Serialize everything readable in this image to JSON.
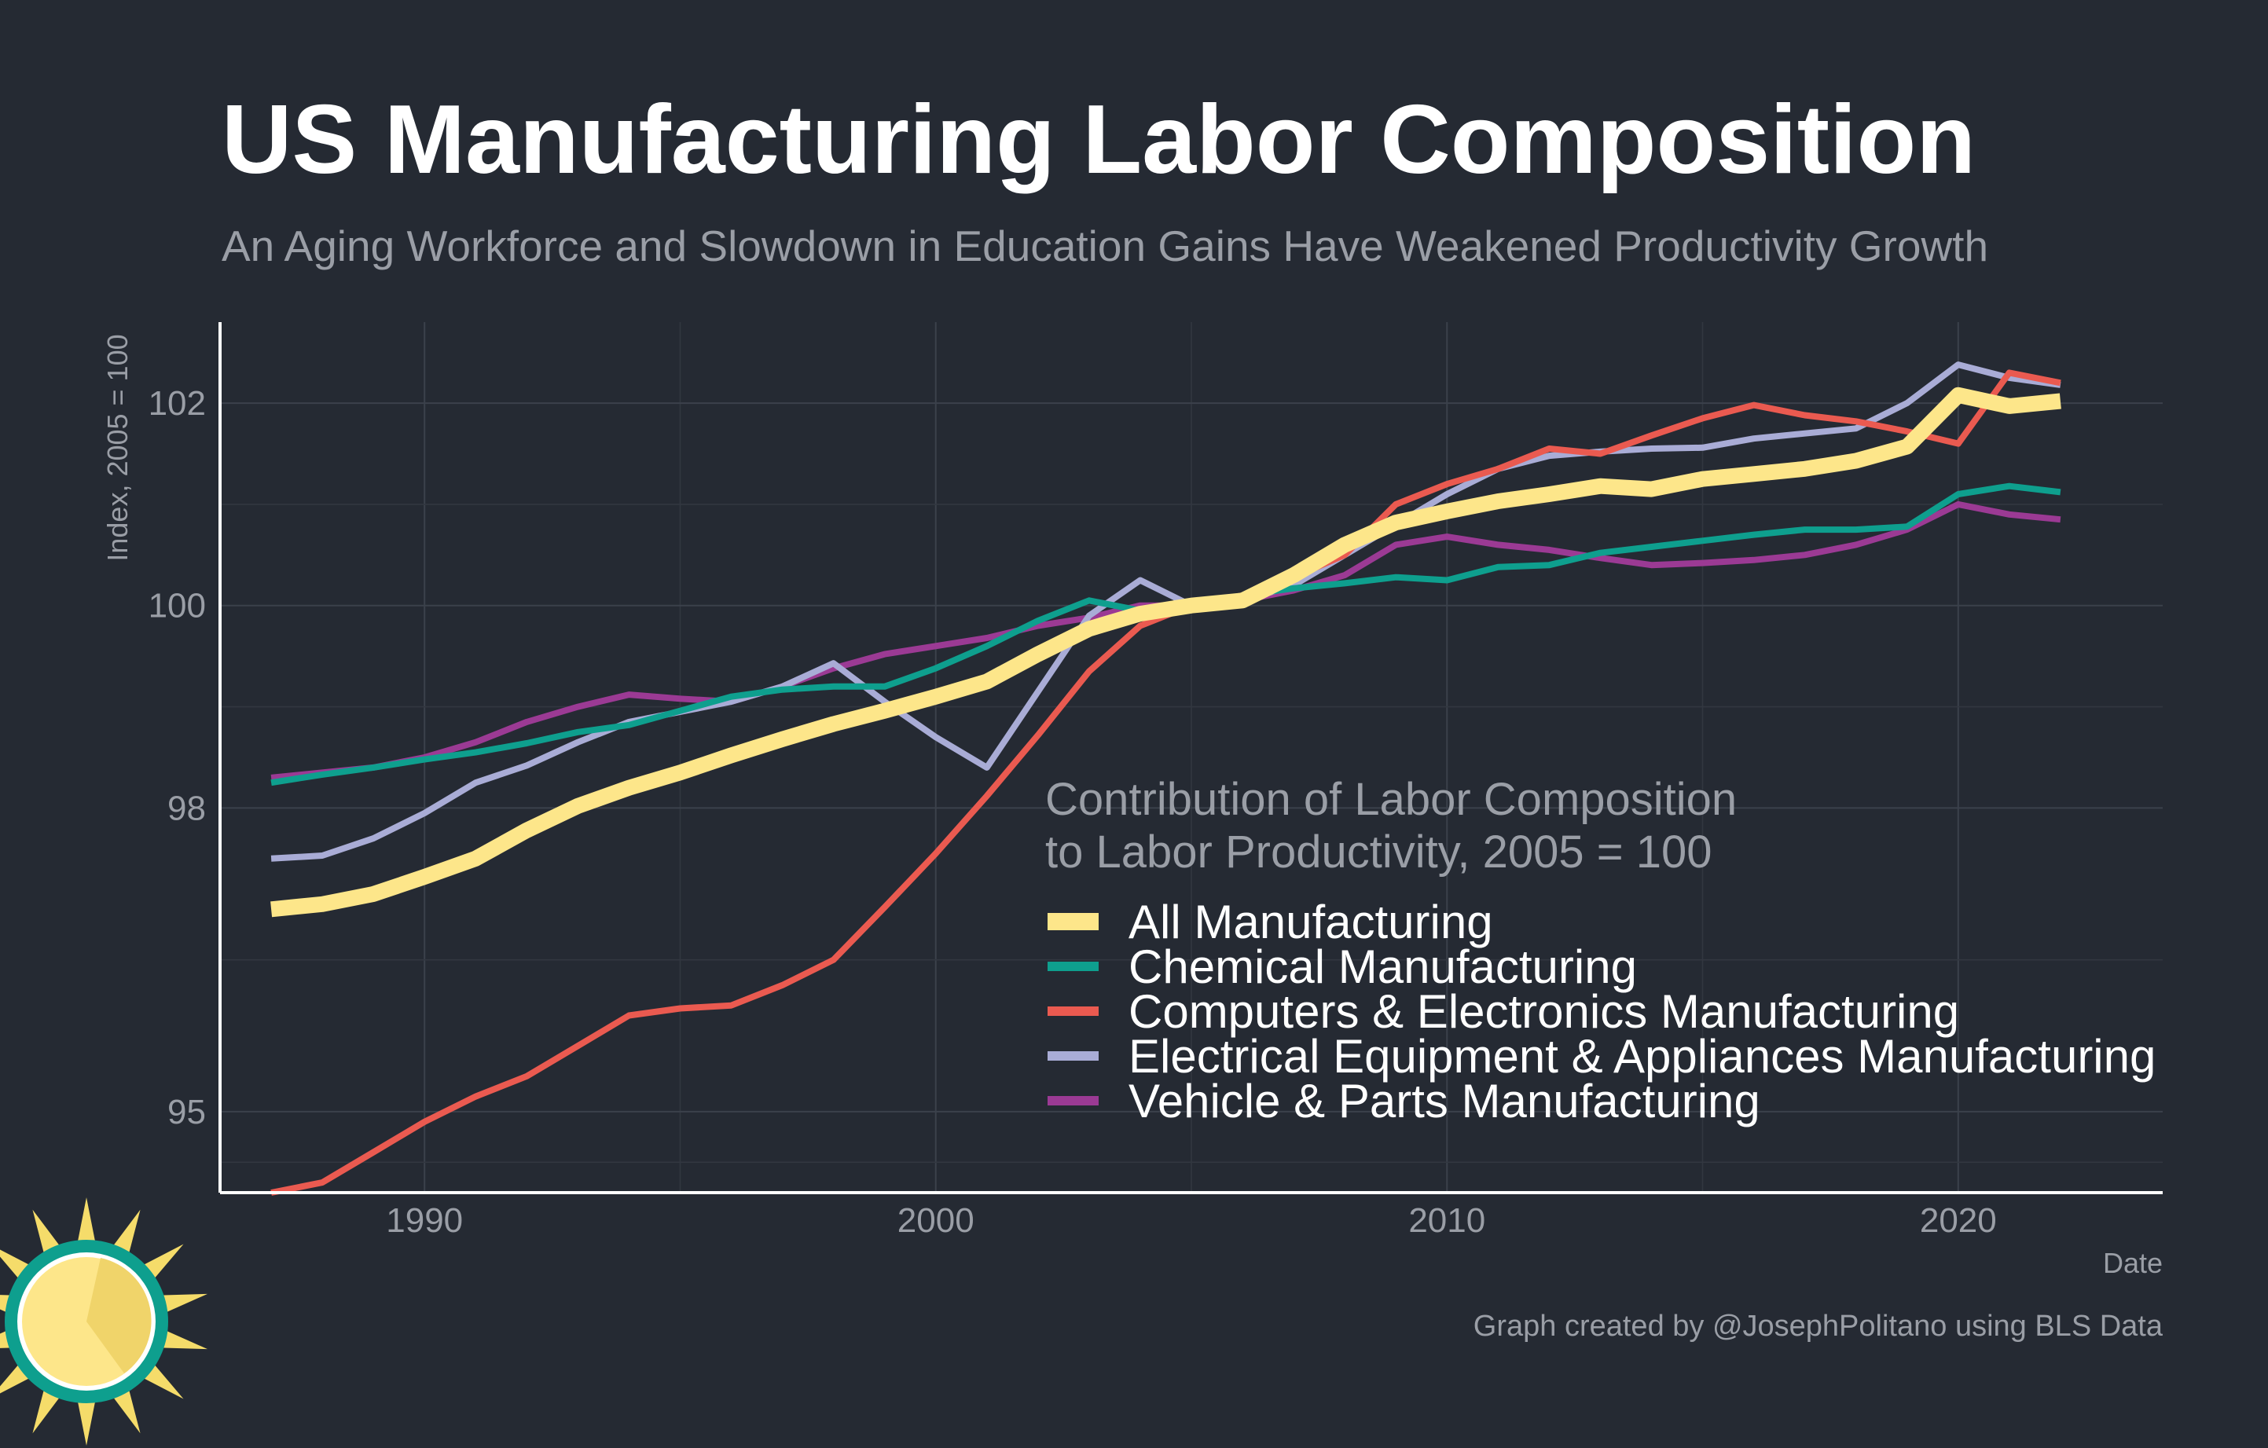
{
  "title": "US Manufacturing Labor Composition",
  "subtitle": "An Aging Workforce and Slowdown in Education Gains Have Weakened Productivity Growth",
  "caption": "Graph created by @JosephPolitano using BLS Data",
  "colors": {
    "background": "#252a33",
    "all_manufacturing": "#fde68a",
    "chemical": "#0e9f8e",
    "computers": "#ea5a50",
    "electrical": "#a9acd6",
    "vehicle": "#9b3a94",
    "logo_sun": "#f5dc6a",
    "logo_ring": "#0e9f8e"
  },
  "logo": {
    "icon": "sun-logo-icon"
  },
  "chart_data": {
    "type": "line",
    "xlabel": "Date",
    "ylabel": "Index, 2005 = 100",
    "xlim": [
      1986,
      2024
    ],
    "ylim": [
      94.2,
      102.8
    ],
    "x_ticks": [
      1990,
      2000,
      2010,
      2020
    ],
    "y_ticks": [
      95,
      98,
      100,
      102
    ],
    "y_tick_labels": [
      "95",
      "98",
      "100",
      "102"
    ],
    "grid": true,
    "legend": {
      "title_lines": [
        "Contribution of Labor Composition",
        "to Labor Productivity, 2005 = 100"
      ],
      "placement": "center-right"
    },
    "x": [
      1987,
      1988,
      1989,
      1990,
      1991,
      1992,
      1993,
      1994,
      1995,
      1996,
      1997,
      1998,
      1999,
      2000,
      2001,
      2002,
      2003,
      2004,
      2005,
      2006,
      2007,
      2008,
      2009,
      2010,
      2011,
      2012,
      2013,
      2014,
      2015,
      2016,
      2017,
      2018,
      2019,
      2020,
      2021,
      2022
    ],
    "series": [
      {
        "name": "Vehicle & Parts Manufacturing",
        "color": "#9b3a94",
        "width": 8,
        "values": [
          98.3,
          98.35,
          98.4,
          98.5,
          98.65,
          98.85,
          99.0,
          99.12,
          99.08,
          99.05,
          99.2,
          99.38,
          99.52,
          99.6,
          99.68,
          99.8,
          99.88,
          100.0,
          100.0,
          100.05,
          100.15,
          100.3,
          100.6,
          100.68,
          100.6,
          100.55,
          100.47,
          100.4,
          100.42,
          100.45,
          100.5,
          100.6,
          100.75,
          101.0,
          100.9,
          100.85
        ]
      },
      {
        "name": "Electrical Equipment & Appliances Manufacturing",
        "color": "#a9acd6",
        "width": 8,
        "values": [
          97.5,
          97.53,
          97.7,
          97.95,
          98.25,
          98.42,
          98.65,
          98.85,
          98.95,
          99.05,
          99.2,
          99.43,
          99.05,
          98.7,
          98.4,
          99.15,
          99.9,
          100.25,
          100.0,
          100.05,
          100.2,
          100.5,
          100.8,
          101.1,
          101.35,
          101.48,
          101.52,
          101.55,
          101.56,
          101.65,
          101.7,
          101.75,
          102.0,
          102.38,
          102.25,
          102.18
        ]
      },
      {
        "name": "Chemical Manufacturing",
        "color": "#0e9f8e",
        "width": 8,
        "values": [
          98.25,
          98.33,
          98.4,
          98.48,
          98.55,
          98.64,
          98.75,
          98.82,
          98.96,
          99.1,
          99.17,
          99.2,
          99.2,
          99.38,
          99.6,
          99.85,
          100.05,
          99.95,
          100.0,
          100.1,
          100.17,
          100.22,
          100.28,
          100.25,
          100.38,
          100.4,
          100.52,
          100.58,
          100.64,
          100.7,
          100.75,
          100.75,
          100.78,
          101.1,
          101.18,
          101.12
        ]
      },
      {
        "name": "Computers & Electronics Manufacturing",
        "color": "#ea5a50",
        "width": 8,
        "values": [
          94.2,
          94.3,
          94.6,
          94.9,
          95.15,
          95.35,
          95.65,
          95.95,
          96.02,
          96.05,
          96.25,
          96.5,
          97.02,
          97.55,
          98.12,
          98.72,
          99.35,
          99.8,
          100.0,
          100.1,
          100.28,
          100.5,
          101.0,
          101.2,
          101.35,
          101.55,
          101.5,
          101.68,
          101.85,
          101.98,
          101.88,
          101.82,
          101.72,
          101.6,
          102.3,
          102.2
        ]
      },
      {
        "name": "All Manufacturing",
        "color": "#fde68a",
        "width": 20,
        "values": [
          97.0,
          97.05,
          97.15,
          97.32,
          97.5,
          97.78,
          98.02,
          98.2,
          98.35,
          98.52,
          98.68,
          98.83,
          98.96,
          99.1,
          99.25,
          99.52,
          99.77,
          99.92,
          100.0,
          100.05,
          100.3,
          100.6,
          100.82,
          100.93,
          101.03,
          101.1,
          101.18,
          101.15,
          101.25,
          101.3,
          101.35,
          101.43,
          101.57,
          102.08,
          101.97,
          102.02
        ]
      }
    ],
    "legend_entries": [
      {
        "name": "All Manufacturing",
        "color": "#fde68a"
      },
      {
        "name": "Chemical Manufacturing",
        "color": "#0e9f8e"
      },
      {
        "name": "Computers & Electronics Manufacturing",
        "color": "#ea5a50"
      },
      {
        "name": "Electrical Equipment & Appliances Manufacturing",
        "color": "#a9acd6"
      },
      {
        "name": "Vehicle & Parts Manufacturing",
        "color": "#9b3a94"
      }
    ]
  }
}
